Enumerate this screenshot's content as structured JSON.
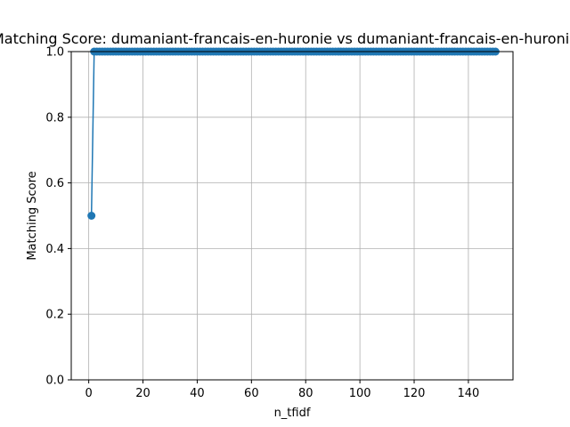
{
  "chart_data": {
    "type": "line",
    "title": "Matching Score: dumaniant-francais-en-huronie vs dumaniant-francais-en-huronie",
    "xlabel": "n_tfidf",
    "ylabel": "Matching Score",
    "xlim": [
      -6.45,
      156.45
    ],
    "ylim": [
      0.0,
      1.0
    ],
    "x_ticks": [
      0,
      20,
      40,
      60,
      80,
      100,
      120,
      140
    ],
    "y_ticks": [
      0.0,
      0.2,
      0.4,
      0.6,
      0.8,
      1.0
    ],
    "x_tick_labels": [
      "0",
      "20",
      "40",
      "60",
      "80",
      "100",
      "120",
      "140"
    ],
    "y_tick_labels": [
      "0.0",
      "0.2",
      "0.4",
      "0.6",
      "0.8",
      "1.0"
    ],
    "grid": true,
    "marker": "circle",
    "color": "#1f77b4",
    "series": [
      {
        "x_start": 1,
        "x_end": 150,
        "x_step": 1,
        "values_rule": "first point 0.5, all remaining points 1.0",
        "first_value": 0.5,
        "rest_value": 1.0
      }
    ]
  }
}
